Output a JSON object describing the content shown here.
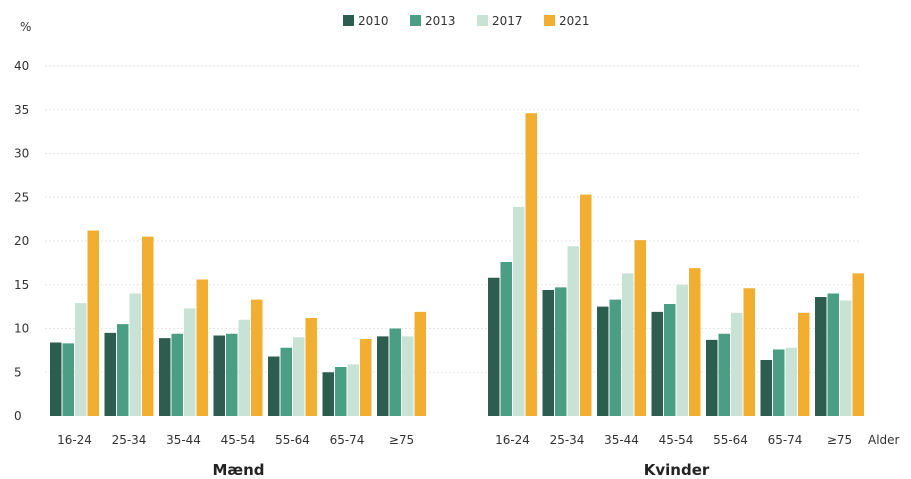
{
  "chart_data": {
    "type": "bar",
    "ylabel": "%",
    "ylim": [
      0,
      40
    ],
    "yticks": [
      0,
      5,
      10,
      15,
      20,
      25,
      30,
      35,
      40
    ],
    "xaxis_label": "Alder",
    "grid": true,
    "legend_position": "top-center",
    "categories": [
      "16-24",
      "25-34",
      "35-44",
      "45-54",
      "55-64",
      "65-74",
      "≥75"
    ],
    "series_meta": [
      {
        "name": "2010",
        "color": "#2d5d4e"
      },
      {
        "name": "2013",
        "color": "#4a9e83"
      },
      {
        "name": "2017",
        "color": "#c9e2d6"
      },
      {
        "name": "2021",
        "color": "#f2ae31"
      }
    ],
    "panels": [
      {
        "title": "Mænd",
        "series": [
          {
            "name": "2010",
            "values": [
              8.4,
              9.5,
              8.9,
              9.2,
              6.8,
              5.0,
              9.1
            ]
          },
          {
            "name": "2013",
            "values": [
              8.3,
              10.5,
              9.4,
              9.4,
              7.8,
              5.6,
              10.0
            ]
          },
          {
            "name": "2017",
            "values": [
              12.9,
              14.0,
              12.3,
              11.0,
              9.0,
              5.9,
              9.1
            ]
          },
          {
            "name": "2021",
            "values": [
              21.2,
              20.5,
              15.6,
              13.3,
              11.2,
              8.8,
              11.9
            ]
          }
        ]
      },
      {
        "title": "Kvinder",
        "series": [
          {
            "name": "2010",
            "values": [
              15.8,
              14.4,
              12.5,
              11.9,
              8.7,
              6.4,
              13.6
            ]
          },
          {
            "name": "2013",
            "values": [
              17.6,
              14.7,
              13.3,
              12.8,
              9.4,
              7.6,
              14.0
            ]
          },
          {
            "name": "2017",
            "values": [
              23.9,
              19.4,
              16.3,
              15.0,
              11.8,
              7.8,
              13.2
            ]
          },
          {
            "name": "2021",
            "values": [
              34.6,
              25.3,
              20.1,
              16.9,
              14.6,
              11.8,
              16.3
            ]
          }
        ]
      }
    ]
  }
}
